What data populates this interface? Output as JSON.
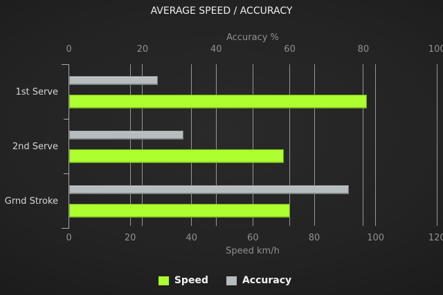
{
  "title": "AVERAGE SPEED / ACCURACY",
  "chart_data": {
    "type": "bar",
    "orientation": "horizontal",
    "categories": [
      "1st Serve",
      "2nd Serve",
      "Grnd Stroke"
    ],
    "series": [
      {
        "name": "Accuracy",
        "axis": "top",
        "color": "#b7bcbe",
        "values": [
          24,
          31,
          76
        ]
      },
      {
        "name": "Speed",
        "axis": "bottom",
        "color": "#adff2f",
        "values": [
          97,
          70,
          72
        ]
      }
    ],
    "axes": {
      "top": {
        "label": "Accuracy %",
        "min": 0,
        "max": 100,
        "ticks": [
          0,
          20,
          40,
          60,
          80,
          100
        ]
      },
      "bottom": {
        "label": "Speed km/h",
        "min": 0,
        "max": 120,
        "ticks": [
          0,
          20,
          40,
          60,
          80,
          100,
          120
        ]
      }
    },
    "grid": {
      "vertical": true,
      "horizontal": false
    },
    "legend_position": "bottom"
  },
  "legend": {
    "items": [
      {
        "label": "Speed",
        "color": "#adff2f"
      },
      {
        "label": "Accuracy",
        "color": "#b7bcbe"
      }
    ]
  },
  "colors": {
    "background_center": "#2a2a2a",
    "background_edge": "#141414",
    "title_text": "#eeeeee",
    "axis_text": "#919191",
    "category_text": "#d5d5d5",
    "legend_text": "#f2f2f2",
    "gridline": "#999999",
    "speed_bar": "#adff2f",
    "accuracy_bar": "#b7bcbe"
  }
}
